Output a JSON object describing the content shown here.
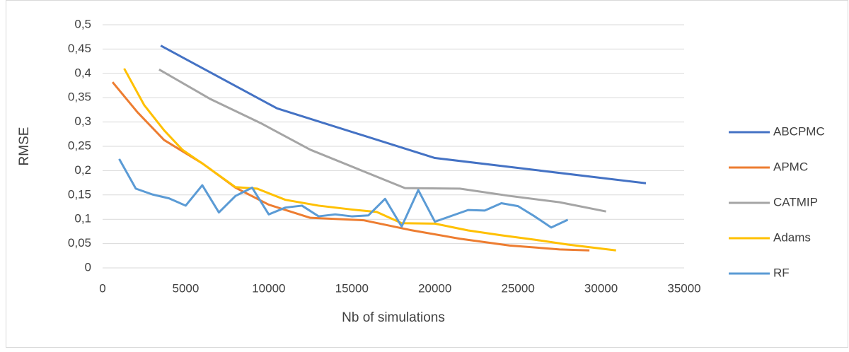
{
  "chart_data": {
    "type": "line",
    "x_label": "Nb of simulations",
    "y_label": "RMSE",
    "xlim": [
      0,
      35000
    ],
    "xticks": [
      0,
      5000,
      10000,
      15000,
      20000,
      25000,
      30000,
      35000
    ],
    "ylim": [
      0,
      0.5
    ],
    "yticks": [
      {
        "value": 0,
        "label": "0"
      },
      {
        "value": 0.05,
        "label": "0,05"
      },
      {
        "value": 0.1,
        "label": "0,1"
      },
      {
        "value": 0.15,
        "label": "0,15"
      },
      {
        "value": 0.2,
        "label": "0,2"
      },
      {
        "value": 0.25,
        "label": "0,25"
      },
      {
        "value": 0.3,
        "label": "0,3"
      },
      {
        "value": 0.35,
        "label": "0,35"
      },
      {
        "value": 0.4,
        "label": "0,4"
      },
      {
        "value": 0.45,
        "label": "0,45"
      },
      {
        "value": 0.5,
        "label": "0,5"
      }
    ],
    "grid": true,
    "legend": "right",
    "series": [
      {
        "name": "ABCPMC",
        "color": "#4472c4",
        "x": [
          3500,
          10500,
          20000,
          32700
        ],
        "values": [
          0.457,
          0.328,
          0.226,
          0.174
        ]
      },
      {
        "name": "APMC",
        "color": "#ed7d31",
        "x": [
          600,
          2100,
          3700,
          6000,
          8000,
          10000,
          12500,
          15700,
          18500,
          21500,
          24500,
          27500,
          29300
        ],
        "values": [
          0.382,
          0.32,
          0.263,
          0.215,
          0.165,
          0.13,
          0.103,
          0.098,
          0.078,
          0.06,
          0.046,
          0.038,
          0.036
        ]
      },
      {
        "name": "CATMIP",
        "color": "#a5a5a5",
        "x": [
          3400,
          6500,
          9500,
          12500,
          18200,
          21500,
          24500,
          27500,
          30300
        ],
        "values": [
          0.408,
          0.347,
          0.298,
          0.243,
          0.164,
          0.163,
          0.148,
          0.135,
          0.116
        ]
      },
      {
        "name": "Adams",
        "color": "#ffc000",
        "x": [
          1300,
          2500,
          3700,
          4800,
          6200,
          8000,
          9300,
          11000,
          13000,
          15000,
          16500,
          18000,
          20000,
          22000,
          24000,
          26000,
          28000,
          30900
        ],
        "values": [
          0.41,
          0.335,
          0.283,
          0.243,
          0.21,
          0.166,
          0.163,
          0.14,
          0.128,
          0.12,
          0.115,
          0.092,
          0.091,
          0.077,
          0.067,
          0.058,
          0.048,
          0.036
        ]
      },
      {
        "name": "RF",
        "color": "#5b9bd5",
        "x": [
          1000,
          2000,
          3000,
          4000,
          5000,
          6000,
          7000,
          8000,
          9000,
          10000,
          11000,
          12000,
          13000,
          14000,
          15000,
          16000,
          17000,
          18000,
          19000,
          20000,
          21000,
          22000,
          23000,
          24000,
          25000,
          26000,
          27000,
          28000
        ],
        "values": [
          0.224,
          0.163,
          0.151,
          0.143,
          0.128,
          0.17,
          0.114,
          0.148,
          0.165,
          0.11,
          0.124,
          0.128,
          0.106,
          0.11,
          0.106,
          0.108,
          0.142,
          0.085,
          0.16,
          0.095,
          0.107,
          0.119,
          0.118,
          0.133,
          0.127,
          0.106,
          0.083,
          0.099
        ]
      }
    ]
  }
}
